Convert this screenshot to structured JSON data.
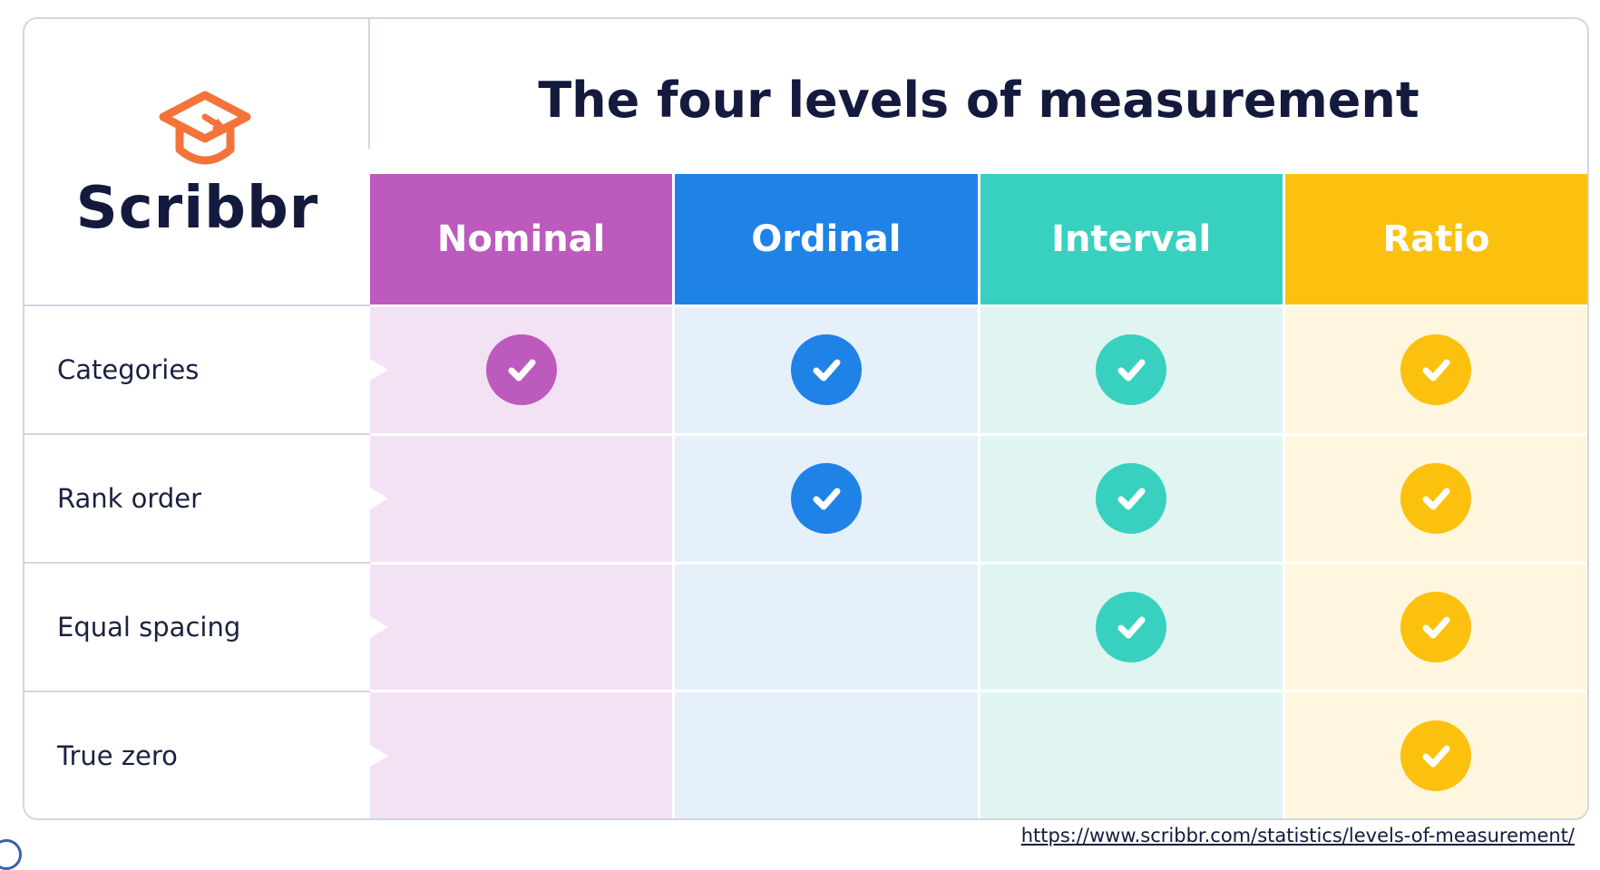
{
  "logo": {
    "text": "Scribbr",
    "icon": "graduation-cap-icon",
    "color": "#f4733a"
  },
  "title": "The four levels of measurement",
  "columns": [
    {
      "label": "Nominal",
      "header_color": "#bc5abd",
      "cell_color": "#f3e2f3",
      "check_color": "#bc5abd"
    },
    {
      "label": "Ordinal",
      "header_color": "#1f82e7",
      "cell_color": "#e6f0fa",
      "check_color": "#1f82e7"
    },
    {
      "label": "Interval",
      "header_color": "#38d1bf",
      "cell_color": "#e0f5f2",
      "check_color": "#38d1bf"
    },
    {
      "label": "Ratio",
      "header_color": "#fcc10e",
      "cell_color": "#fef6df",
      "check_color": "#fcc10e"
    }
  ],
  "rows": [
    {
      "label": "Categories",
      "checks": [
        true,
        true,
        true,
        true
      ]
    },
    {
      "label": "Rank order",
      "checks": [
        false,
        true,
        true,
        true
      ]
    },
    {
      "label": "Equal spacing",
      "checks": [
        false,
        false,
        true,
        true
      ]
    },
    {
      "label": "True zero",
      "checks": [
        false,
        false,
        false,
        true
      ]
    }
  ],
  "check_icon": "check-circle-icon",
  "source": {
    "url_text": "https://www.scribbr.com/statistics/levels-of-measurement/"
  }
}
